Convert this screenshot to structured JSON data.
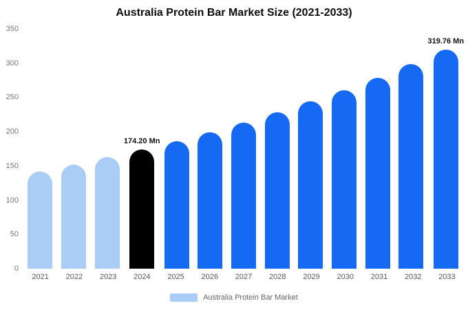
{
  "title": "Australia Protein Bar Market Size (2021-2033)",
  "legend": {
    "label": "Australia Protein Bar Market"
  },
  "chart_data": {
    "type": "bar",
    "title": "Australia Protein Bar Market Size (2021-2033)",
    "categories": [
      "2021",
      "2022",
      "2023",
      "2024",
      "2025",
      "2026",
      "2027",
      "2028",
      "2029",
      "2030",
      "2031",
      "2032",
      "2033"
    ],
    "values": [
      142,
      152,
      163,
      174.2,
      186,
      199,
      213,
      228,
      244,
      261,
      279,
      299,
      319.76
    ],
    "unit": "Mn",
    "xlabel": "",
    "ylabel": "",
    "ylim": [
      0,
      350
    ],
    "yticks": [
      0,
      50,
      100,
      150,
      200,
      250,
      300,
      350
    ],
    "grid": false,
    "legend_position": "bottom",
    "bar_colors": [
      "#a9cdf4",
      "#a9cdf4",
      "#a9cdf4",
      "#000000",
      "#1569f2",
      "#1569f2",
      "#1569f2",
      "#1569f2",
      "#1569f2",
      "#1569f2",
      "#1569f2",
      "#1569f2",
      "#1569f2"
    ],
    "annotations": [
      {
        "index": 3,
        "text": "174.20 Mn"
      },
      {
        "index": 12,
        "text": "319.76 Mn"
      }
    ],
    "legend": [
      {
        "label": "Australia Protein Bar Market",
        "color": "#a9cdf4"
      }
    ]
  }
}
